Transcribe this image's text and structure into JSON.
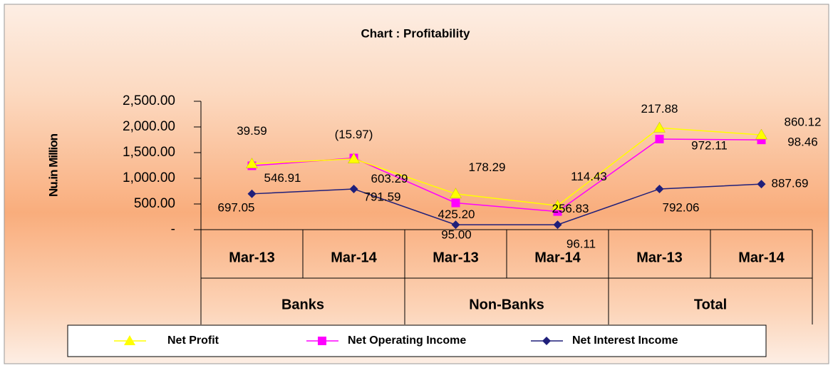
{
  "chart_data": {
    "type": "stacked_line",
    "title": "Chart : Profitability",
    "y_label": "Nu.in Million",
    "categories": [
      "Mar-13",
      "Mar-14",
      "Mar-13",
      "Mar-14",
      "Mar-13",
      "Mar-14"
    ],
    "groups": [
      "Banks",
      "Non-Banks",
      "Total"
    ],
    "ylim": [
      0,
      2500
    ],
    "yticks": [
      {
        "value": 0,
        "label": "-"
      },
      {
        "value": 500,
        "label": "500.00"
      },
      {
        "value": 1000,
        "label": "1,000.00"
      },
      {
        "value": 1500,
        "label": "1,500.00"
      },
      {
        "value": 2000,
        "label": "2,000.00"
      },
      {
        "value": 2500,
        "label": "2,500.00"
      }
    ],
    "series": [
      {
        "name": "Net Interest Income",
        "color": "#1f1f7a",
        "marker": "diamond",
        "values": [
          697.05,
          791.59,
          95.0,
          96.11,
          792.06,
          887.69
        ],
        "value_labels": [
          "697.05",
          "791.59",
          "95.00",
          "96.11",
          "792.06",
          "887.69"
        ]
      },
      {
        "name": "Net Operating Income",
        "color": "#ff00ff",
        "marker": "square",
        "values": [
          546.91,
          603.29,
          425.2,
          256.83,
          972.11,
          860.12
        ],
        "value_labels": [
          "546.91",
          "603.29",
          "425.20",
          "256.83",
          "972.11",
          "860.12"
        ]
      },
      {
        "name": "Net Profit",
        "color": "#ffff00",
        "marker": "triangle",
        "values": [
          39.59,
          -15.97,
          178.29,
          114.43,
          217.88,
          98.46
        ],
        "value_labels": [
          "39.59",
          "(15.97)",
          "178.29",
          "114.43",
          "217.88",
          "98.46"
        ]
      }
    ],
    "legend_order": [
      2,
      1,
      0
    ]
  }
}
